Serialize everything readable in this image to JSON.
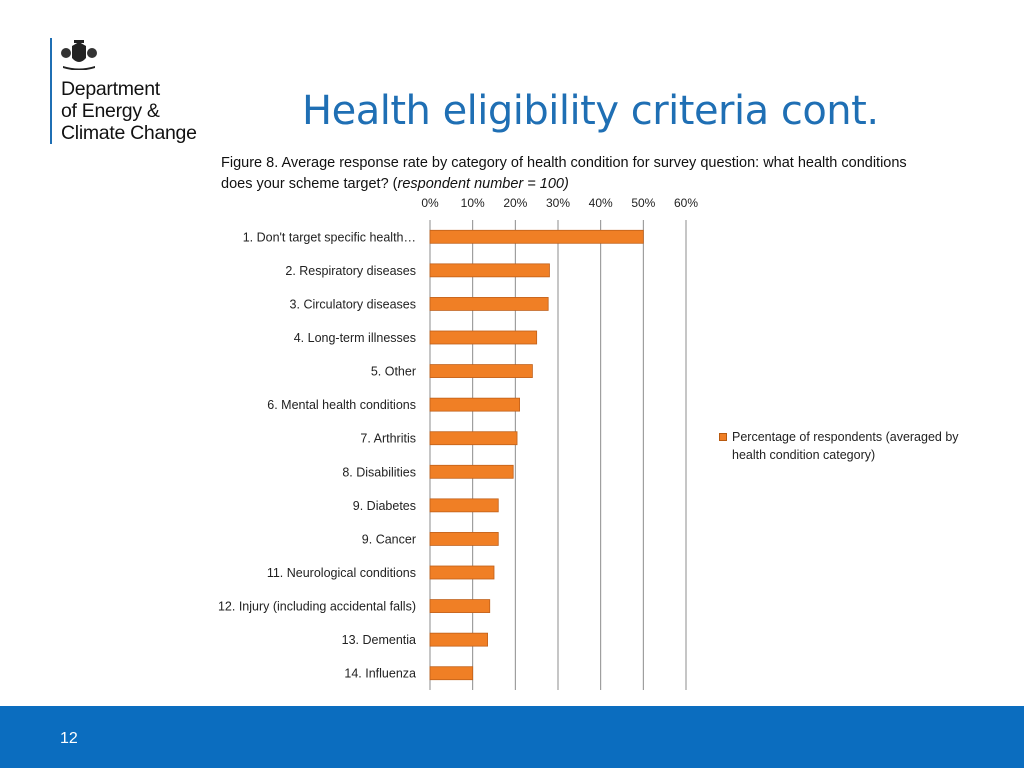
{
  "logo": {
    "org_lines": [
      "Department",
      "of Energy &",
      "Climate Change"
    ]
  },
  "slide": {
    "title": "Health eligibility criteria cont.",
    "caption_main": "Figure 8. Average response rate by category of health condition for survey question: what health conditions does your scheme target? (",
    "caption_italic": "respondent number = 100)",
    "page_number": "12"
  },
  "colors": {
    "accent_blue": "#1f6fb4",
    "footer_blue": "#0b6dbf",
    "bar_orange": "#f07f25"
  },
  "chart_data": {
    "type": "bar",
    "orientation": "horizontal",
    "title": "",
    "xlabel": "",
    "ylabel": "",
    "x_ticks": [
      "0%",
      "10%",
      "20%",
      "30%",
      "40%",
      "50%",
      "60%"
    ],
    "xlim": [
      0,
      60
    ],
    "grid": true,
    "axis_position": "top",
    "legend_position": "right",
    "categories": [
      "1. Don't target specific health…",
      "2. Respiratory diseases",
      "3. Circulatory diseases",
      "4. Long-term illnesses",
      "5. Other",
      "6. Mental health conditions",
      "7. Arthritis",
      "8. Disabilities",
      "9. Diabetes",
      "9. Cancer",
      "11. Neurological conditions",
      "12. Injury (including accidental falls)",
      "13. Dementia",
      "14. Influenza"
    ],
    "series": [
      {
        "name": "Percentage of respondents (averaged by health condition category)",
        "color": "#f07f25",
        "values": [
          50,
          28,
          27.7,
          25,
          24,
          21,
          20.4,
          19.5,
          16,
          16,
          15,
          14,
          13.5,
          10
        ]
      }
    ]
  }
}
